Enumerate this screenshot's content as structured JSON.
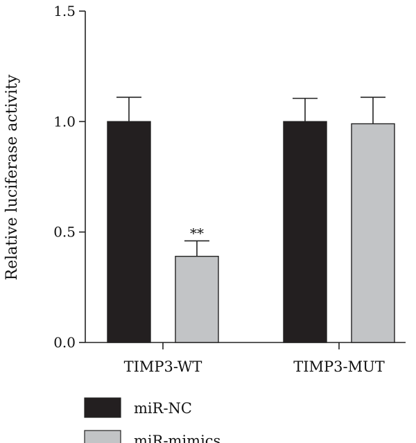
{
  "chart_data": {
    "type": "bar",
    "title": "",
    "xlabel": "",
    "ylabel": "Relative luciferase activity",
    "ylim": [
      0,
      1.5
    ],
    "yticks": [
      "0.0",
      "0.5",
      "1.0",
      "1.5"
    ],
    "categories": [
      "TIMP3-WT",
      "TIMP3-MUT"
    ],
    "series": [
      {
        "name": "miR-NC",
        "values": [
          1.0,
          1.0
        ],
        "errors": [
          0.11,
          0.105
        ],
        "color": "#231f20"
      },
      {
        "name": "miR-mimics",
        "values": [
          0.39,
          0.99
        ],
        "errors": [
          0.07,
          0.12
        ],
        "color": "#c2c4c6"
      }
    ],
    "annotations": [
      {
        "category": "TIMP3-WT",
        "series": "miR-mimics",
        "text": "**"
      }
    ],
    "grid": false,
    "legend": "bottom-left"
  }
}
